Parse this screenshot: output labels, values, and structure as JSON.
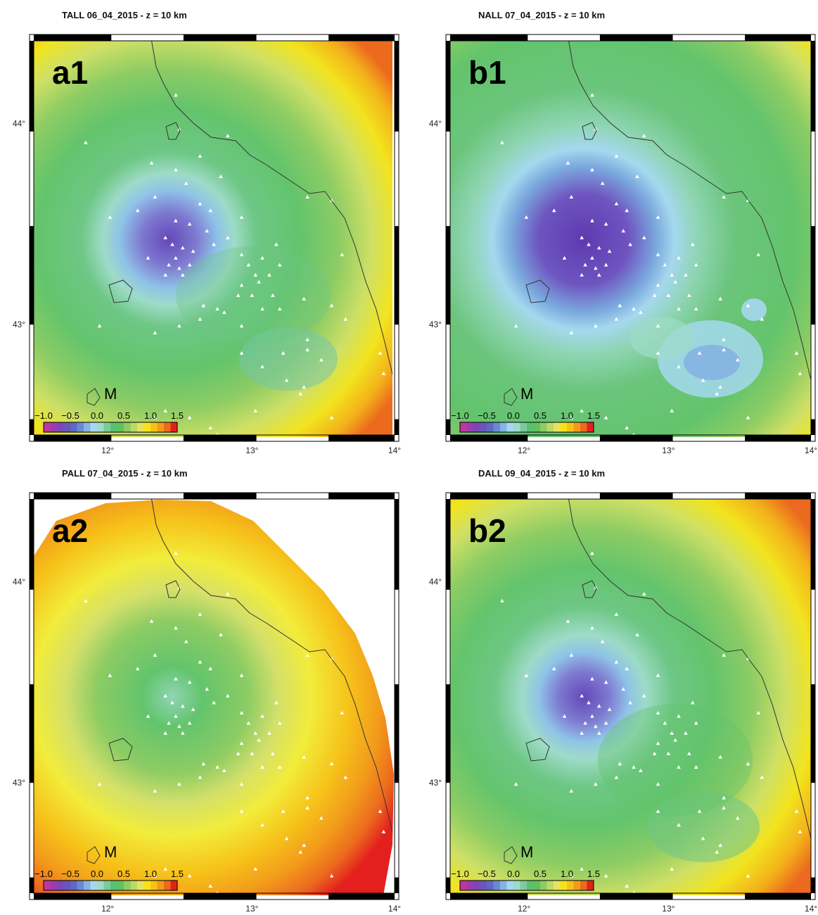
{
  "panels": [
    {
      "id": "a1",
      "title": "TALL 06_04_2015 - z = 10 km",
      "letter": "a1",
      "variant": "tall"
    },
    {
      "id": "b1",
      "title": "NALL 07_04_2015 - z = 10 km",
      "letter": "b1",
      "variant": "nall"
    },
    {
      "id": "a2",
      "title": "PALL 07_04_2015 - z = 10 km",
      "letter": "a2",
      "variant": "pall"
    },
    {
      "id": "b2",
      "title": "DALL 09_04_2015 - z = 10 km",
      "letter": "b2",
      "variant": "dall"
    }
  ],
  "axes": {
    "x_ticks": [
      "12°",
      "13°",
      "14°"
    ],
    "y_ticks": [
      "44°",
      "43°"
    ]
  },
  "map_marker": "M",
  "colorbar": {
    "labels": [
      "−1.0",
      "−0.5",
      "0.0",
      "0.5",
      "1.0",
      "1.5"
    ],
    "colors": [
      "#c2359e",
      "#9a3db3",
      "#7d47b7",
      "#6b54bd",
      "#5f68c4",
      "#6b89d3",
      "#86b3e3",
      "#a5d8ee",
      "#9edbc8",
      "#7ccb9c",
      "#59c173",
      "#62c05f",
      "#8dcc64",
      "#bcd866",
      "#e5e45e",
      "#f7e21a",
      "#f6c21a",
      "#f29b1b",
      "#ec6a1e",
      "#e3201d"
    ]
  },
  "colors": {
    "coastline": "#333333",
    "station": "#ffffff"
  }
}
